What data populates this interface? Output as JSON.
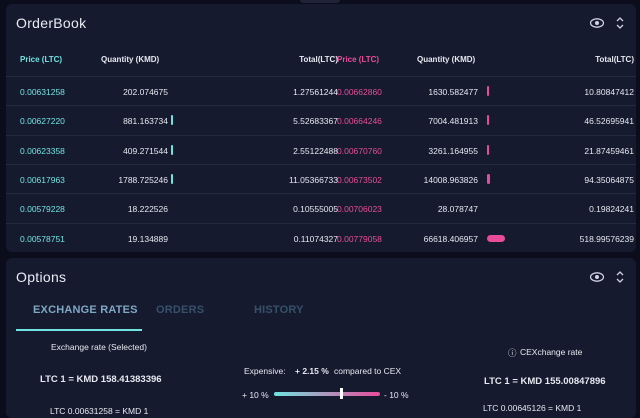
{
  "orderbook": {
    "title": "OrderBook",
    "headers": {
      "buy_price": "Price (LTC)",
      "buy_qty": "Quantity (KMD)",
      "buy_total": "Total(LTC)",
      "sell_price": "Price (LTC)",
      "sell_qty": "Quantity (KMD)",
      "sell_total": "Total(LTC)"
    },
    "rows": [
      {
        "bp": "0.00631258",
        "bq": "202.074675",
        "bt": "1.27561244",
        "sp": "0.00662860",
        "sq": "1630.582477",
        "st": "10.80847412",
        "bd": 0.0,
        "sd": 0.05
      },
      {
        "bp": "0.00627220",
        "bq": "881.163734",
        "bt": "5.52683367",
        "sp": "0.00664246",
        "sq": "7004.481913",
        "st": "46.52695941",
        "bd": 0.08,
        "sd": 0.11
      },
      {
        "bp": "0.00623358",
        "bq": "409.271544",
        "bt": "2.55122488",
        "sp": "0.00670760",
        "sq": "3261.164955",
        "st": "21.87459461",
        "bd": 0.03,
        "sd": 0.05
      },
      {
        "bp": "0.00617963",
        "bq": "1788.725246",
        "bt": "11.05366733",
        "sp": "0.00673502",
        "sq": "14008.963826",
        "st": "94.35064875",
        "bd": 0.12,
        "sd": 0.18
      },
      {
        "bp": "0.00579228",
        "bq": "18.222526",
        "bt": "0.10555005",
        "sp": "0.00706023",
        "sq": "28.078747",
        "st": "0.19824241",
        "bd": 0.0,
        "sd": 0.0
      },
      {
        "bp": "0.00578751",
        "bq": "19.134889",
        "bt": "0.11074327",
        "sp": "0.00779058",
        "sq": "66618.406957",
        "st": "518.99576239",
        "bd": 0.0,
        "sd": 1.0
      }
    ]
  },
  "options": {
    "title": "Options",
    "tabs": [
      "EXCHANGE RATES",
      "ORDERS",
      "HISTORY"
    ],
    "selected_label": "Exchange rate (Selected)",
    "selected_rate": "LTC 1 = KMD 158.41383396",
    "selected_inverse": "LTC 0.00631258 = KMD 1",
    "expensive_label": "Expensive:",
    "expensive_value": "+ 2.15 %",
    "compared": "compared to CEX",
    "slider_left": "+ 10 %",
    "slider_right": "- 10 %",
    "slider_level": 0.62,
    "cex_label": "CEXchange rate",
    "cex_icon": "ⓘ",
    "cex_rate": "LTC 1 = KMD 155.00847896",
    "cex_inverse": "LTC 0.00645126 = KMD 1"
  },
  "colors": {
    "buy": "#6fe3e0",
    "sell": "#e94b9b",
    "panel": "#161a2e",
    "bg": "#0b0d1c"
  }
}
